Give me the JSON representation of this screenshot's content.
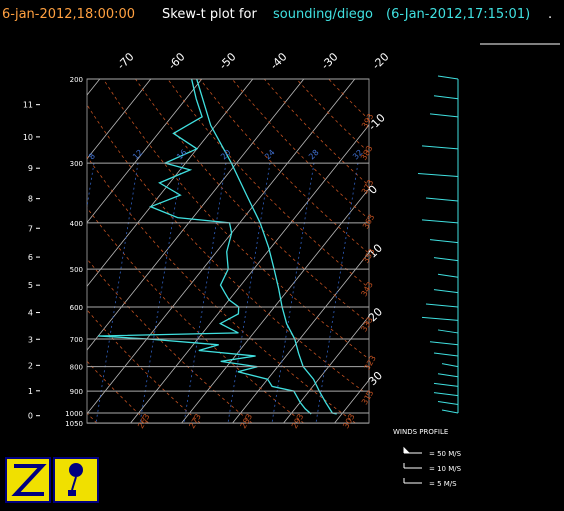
{
  "chart_data": {
    "type": "skewt",
    "header": {
      "time": "6-jan-2012,18:00:00",
      "prefix": "Skew-t plot for",
      "station": "sounding/diego",
      "issued": "(6-Jan-2012,17:15:01)",
      "end": "."
    },
    "pressure_ticks": [
      200,
      300,
      400,
      500,
      600,
      700,
      800,
      900,
      1000,
      1050
    ],
    "height_ticks": [
      0,
      1,
      2,
      3,
      4,
      5,
      6,
      7,
      8,
      9,
      10,
      11
    ],
    "temp_ticks_top": [
      -70,
      -60,
      -50,
      -40,
      -30,
      -20
    ],
    "temp_ticks_right": [
      -10,
      0,
      10,
      20,
      30
    ],
    "dry_adiabats": [
      253,
      263,
      273,
      283,
      293,
      303,
      313,
      323,
      333,
      343,
      353,
      363,
      373,
      383,
      393
    ],
    "moist_labels": [
      8,
      12,
      16,
      20,
      24,
      28,
      32
    ],
    "temperature": {
      "color": "#40e0e0",
      "pressure": [
        1005,
        1000,
        950,
        900,
        850,
        800,
        750,
        700,
        650,
        600,
        550,
        500,
        450,
        400,
        350,
        300,
        250,
        200
      ],
      "values": [
        29,
        28,
        25,
        22,
        19,
        15,
        12,
        9,
        5,
        1.5,
        -2,
        -6,
        -10.5,
        -16,
        -23,
        -31,
        -41,
        -51
      ]
    },
    "dewpoint": {
      "color": "#40e0e0",
      "pressure": [
        1005,
        980,
        950,
        900,
        880,
        850,
        820,
        800,
        780,
        760,
        740,
        720,
        700,
        690,
        680,
        650,
        620,
        600,
        580,
        560,
        540,
        500,
        460,
        420,
        400,
        390,
        370,
        350,
        330,
        310,
        300,
        280,
        260,
        240,
        220,
        200
      ],
      "values": [
        24,
        22,
        20,
        17,
        12,
        10,
        3,
        6,
        -2,
        4,
        -8,
        -5,
        -20,
        -30,
        -3,
        -8,
        -6,
        -7,
        -10,
        -12,
        -14,
        -15,
        -18,
        -20,
        -22,
        -33,
        -40,
        -36,
        -42,
        -38,
        -44,
        -40,
        -47,
        -44,
        -48,
        -52
      ]
    },
    "winds": {
      "title": "WINDS PROFILE",
      "color": "#40e0e0",
      "pressure": [
        1000,
        960,
        920,
        880,
        840,
        800,
        760,
        720,
        680,
        640,
        600,
        560,
        520,
        480,
        440,
        400,
        360,
        320,
        280,
        240,
        220,
        200
      ],
      "speed": [
        4,
        5,
        6,
        6,
        5,
        4,
        6,
        7,
        5,
        9,
        8,
        6,
        5,
        6,
        7,
        9,
        8,
        10,
        9,
        7,
        6,
        5
      ],
      "legend": [
        "= 50 M/S",
        "= 10 M/S",
        "= 5 M/S"
      ]
    }
  }
}
